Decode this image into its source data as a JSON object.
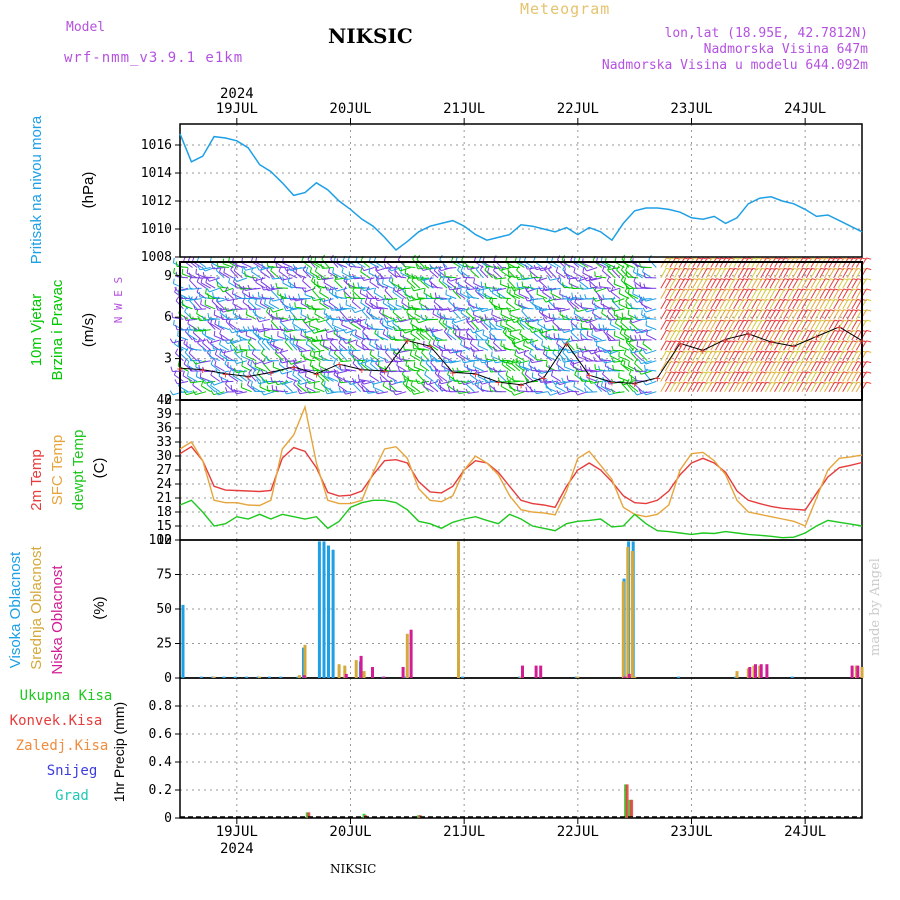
{
  "header": {
    "model_label": "Model",
    "model_name": "wrf-nmm_v3.9.1 e1km",
    "station": "NIKSIC",
    "product": "Meteogram",
    "lonlat": "lon,lat (18.95E, 42.7812N)",
    "elevation": "Nadmorska Visina 647m",
    "model_elevation": "Nadmorska Visina u modelu 644.092m",
    "footer_station": "NIKSIC",
    "credit": "made by Angel"
  },
  "colors": {
    "pressure": "#1ea0e6",
    "wind_label": "#00c800",
    "t2m": "#e63c3c",
    "tsfc": "#e6a53c",
    "dewpoint": "#1ec81e",
    "high_cloud": "#1ea0e6",
    "mid_cloud": "#d4aa3c",
    "low_cloud": "#d21e96",
    "precip_total": "#1ec81e",
    "precip_conv": "#e63c3c",
    "precip_frozen": "#f08c3c",
    "snow": "#3c3cdc",
    "hail": "#1ec8b4",
    "grid": "#999999"
  },
  "chart_data": [
    {
      "type": "line",
      "panel": "pressure",
      "ylabel": [
        "Pritisak na nivou mora",
        "(hPa)"
      ],
      "ylim": [
        1008,
        1017.5
      ],
      "yticks": [
        1008,
        1010,
        1012,
        1014,
        1016
      ],
      "x_unit": "days since 2024-07-19 00:00 UTC",
      "date_labels": {
        "year": "2024",
        "days": [
          "19JUL",
          "20JUL",
          "21JUL",
          "22JUL",
          "23JUL",
          "24JUL"
        ]
      },
      "series": [
        {
          "name": "Pritisak",
          "x": [
            -0.5,
            -0.4,
            -0.3,
            -0.2,
            -0.1,
            0.0,
            0.1,
            0.2,
            0.3,
            0.4,
            0.5,
            0.6,
            0.7,
            0.8,
            0.9,
            1.0,
            1.1,
            1.2,
            1.3,
            1.4,
            1.5,
            1.6,
            1.7,
            1.8,
            1.9,
            2.0,
            2.1,
            2.2,
            2.3,
            2.4,
            2.5,
            2.6,
            2.7,
            2.8,
            2.9,
            3.0,
            3.1,
            3.2,
            3.3,
            3.4,
            3.5,
            3.6,
            3.7,
            3.8,
            3.9,
            4.0,
            4.1,
            4.2,
            4.3,
            4.4,
            4.5,
            4.6,
            4.7,
            4.8,
            4.9,
            5.0,
            5.1,
            5.2,
            5.3,
            5.4,
            5.5
          ],
          "values": [
            1016.8,
            1014.8,
            1015.2,
            1016.6,
            1016.5,
            1016.3,
            1015.8,
            1014.6,
            1014.1,
            1013.3,
            1012.4,
            1012.6,
            1013.3,
            1012.8,
            1012.0,
            1011.4,
            1010.7,
            1010.2,
            1009.4,
            1008.5,
            1009.1,
            1009.8,
            1010.2,
            1010.4,
            1010.6,
            1010.2,
            1009.6,
            1009.2,
            1009.4,
            1009.6,
            1010.3,
            1010.2,
            1010.0,
            1009.8,
            1010.1,
            1009.6,
            1010.1,
            1009.8,
            1009.2,
            1010.4,
            1011.3,
            1011.5,
            1011.5,
            1011.4,
            1011.2,
            1010.8,
            1010.7,
            1010.9,
            1010.4,
            1010.8,
            1011.8,
            1012.2,
            1012.3,
            1012.0,
            1011.8,
            1011.4,
            1010.9,
            1011.0,
            1010.6,
            1010.2,
            1009.8
          ]
        }
      ]
    },
    {
      "type": "line",
      "panel": "wind",
      "ylabel": [
        "10m Vjetar",
        "Brzina i Pravac",
        "(m/s)"
      ],
      "compass": "N W E S",
      "ylim": [
        0,
        10
      ],
      "yticks": [
        0,
        3,
        6,
        9
      ],
      "series": [
        {
          "name": "Brzina",
          "x": [
            -0.5,
            -0.3,
            -0.1,
            0.1,
            0.3,
            0.5,
            0.7,
            0.9,
            1.1,
            1.3,
            1.5,
            1.7,
            1.9,
            2.1,
            2.3,
            2.5,
            2.7,
            2.9,
            3.1,
            3.3,
            3.5,
            3.7,
            3.9,
            4.1,
            4.3,
            4.5,
            4.7,
            4.9,
            5.1,
            5.3,
            5.5
          ],
          "values": [
            2.3,
            2.2,
            1.9,
            1.7,
            2.0,
            2.4,
            1.9,
            2.6,
            2.2,
            2.1,
            4.3,
            3.9,
            2.0,
            1.9,
            1.3,
            1.1,
            1.6,
            4.1,
            1.8,
            1.3,
            1.2,
            1.6,
            4.1,
            3.6,
            4.4,
            4.8,
            4.2,
            3.9,
            4.6,
            5.3,
            4.3
          ]
        }
      ]
    },
    {
      "type": "line",
      "panel": "temperature",
      "ylabel": [
        "2m Temp",
        "SFC Temp",
        "dewpt Temp",
        "(C)"
      ],
      "ylim": [
        12,
        42
      ],
      "yticks": [
        12,
        15,
        18,
        21,
        24,
        27,
        30,
        33,
        36,
        39,
        42
      ],
      "x": [
        -0.5,
        -0.4,
        -0.3,
        -0.2,
        -0.1,
        0.0,
        0.1,
        0.2,
        0.3,
        0.4,
        0.5,
        0.6,
        0.7,
        0.8,
        0.9,
        1.0,
        1.1,
        1.2,
        1.3,
        1.4,
        1.5,
        1.6,
        1.7,
        1.8,
        1.9,
        2.0,
        2.1,
        2.2,
        2.3,
        2.4,
        2.5,
        2.6,
        2.7,
        2.8,
        2.9,
        3.0,
        3.1,
        3.2,
        3.3,
        3.4,
        3.5,
        3.6,
        3.7,
        3.8,
        3.9,
        4.0,
        4.1,
        4.2,
        4.3,
        4.4,
        4.5,
        4.6,
        4.7,
        4.8,
        4.9,
        5.0,
        5.1,
        5.2,
        5.3,
        5.4,
        5.5
      ],
      "series": [
        {
          "name": "2m Temp",
          "values": [
            30.5,
            32.0,
            29.0,
            23.5,
            22.7,
            22.6,
            22.5,
            22.4,
            22.6,
            29.5,
            31.8,
            31.0,
            27.5,
            22.2,
            21.4,
            21.6,
            22.5,
            26.0,
            29.0,
            29.2,
            28.5,
            24.5,
            22.3,
            22.1,
            23.5,
            27.0,
            29.0,
            28.5,
            26.5,
            23.5,
            20.5,
            19.8,
            19.5,
            19.0,
            23.5,
            27.0,
            28.5,
            27.0,
            24.5,
            21.5,
            20.0,
            19.8,
            20.5,
            22.5,
            26.0,
            28.5,
            29.5,
            28.5,
            26.5,
            22.5,
            20.5,
            19.8,
            19.2,
            18.8,
            18.6,
            18.4,
            22.0,
            25.5,
            27.5,
            28.0,
            28.6
          ]
        },
        {
          "name": "SFC Temp",
          "values": [
            31.5,
            33.0,
            29.0,
            20.5,
            20.0,
            20.0,
            19.5,
            19.4,
            20.5,
            31.5,
            34.5,
            40.5,
            28.5,
            20.5,
            19.8,
            19.8,
            20.5,
            26.5,
            31.5,
            32.0,
            29.5,
            23.0,
            20.5,
            20.2,
            21.5,
            27.0,
            30.0,
            28.5,
            26.0,
            21.5,
            18.5,
            18.0,
            17.8,
            17.4,
            22.5,
            29.5,
            31.0,
            28.0,
            25.0,
            19.0,
            17.5,
            17.0,
            17.5,
            19.5,
            27.0,
            30.5,
            30.8,
            29.0,
            26.0,
            20.5,
            18.0,
            17.5,
            17.0,
            16.5,
            16.0,
            15.0,
            21.0,
            27.0,
            29.5,
            29.8,
            30.2
          ]
        },
        {
          "name": "dewpt Temp",
          "values": [
            19.5,
            20.5,
            18.0,
            15.0,
            15.5,
            17.0,
            16.5,
            17.5,
            16.5,
            17.5,
            17.0,
            16.5,
            17.0,
            14.5,
            16.0,
            19.0,
            20.0,
            20.5,
            20.5,
            20.0,
            18.5,
            16.0,
            15.5,
            14.5,
            15.8,
            16.5,
            17.0,
            16.2,
            15.5,
            17.5,
            16.5,
            15.0,
            14.5,
            14.0,
            15.5,
            16.0,
            16.2,
            16.5,
            14.8,
            15.0,
            17.5,
            15.5,
            14.0,
            13.8,
            13.5,
            13.2,
            13.5,
            13.4,
            13.8,
            13.5,
            13.2,
            13.0,
            12.8,
            12.5,
            12.6,
            13.5,
            15.0,
            16.2,
            15.8,
            15.4,
            15.0
          ]
        }
      ]
    },
    {
      "type": "bar",
      "panel": "cloud",
      "ylabel": [
        "Visoka Oblacnost",
        "Srednja Oblacnost",
        "Niska Oblacnost",
        "(%)"
      ],
      "ylim": [
        0,
        100
      ],
      "yticks": [
        0,
        25,
        50,
        75,
        100
      ],
      "series": [
        {
          "name": "Visoka Oblacnost",
          "x": [
            -0.46,
            -0.3,
            -0.2,
            -0.1,
            0.0,
            0.1,
            0.2,
            0.3,
            0.4,
            0.55,
            0.6,
            0.74,
            0.78,
            0.82,
            0.86,
            1.1,
            1.3,
            1.5,
            2.0,
            2.5,
            3.0,
            3.42,
            3.46,
            3.5,
            3.9,
            4.4,
            4.9
          ],
          "values": [
            53,
            1,
            1,
            1,
            1,
            1,
            1,
            1,
            1,
            1,
            22,
            99,
            99,
            96,
            93,
            12,
            1,
            1,
            1,
            1,
            1,
            72,
            99,
            99,
            1,
            1,
            1
          ]
        },
        {
          "name": "Srednja Oblacnost",
          "x": [
            -0.2,
            0.2,
            0.55,
            0.6,
            0.9,
            0.95,
            1.05,
            1.12,
            1.5,
            1.95,
            2.5,
            3.0,
            3.4,
            3.44,
            3.48,
            3.5,
            4.4,
            4.5,
            4.55,
            4.6,
            5.45,
            5.5
          ],
          "values": [
            1,
            1,
            2,
            24,
            10,
            9,
            13,
            5,
            32,
            99,
            1,
            1,
            70,
            95,
            92,
            1,
            5,
            7,
            9,
            9,
            9,
            8
          ]
        },
        {
          "name": "Niska Oblacnost",
          "x": [
            0.58,
            0.95,
            1.08,
            1.18,
            1.28,
            1.45,
            1.52,
            2.5,
            2.62,
            2.66,
            3.4,
            3.44,
            4.5,
            4.55,
            4.6,
            4.65,
            5.4,
            5.45
          ],
          "values": [
            2,
            3,
            16,
            8,
            1,
            8,
            35,
            9,
            9,
            9,
            1,
            3,
            8,
            10,
            10,
            10,
            9,
            9
          ]
        }
      ]
    },
    {
      "type": "bar",
      "panel": "precip",
      "ylabel": [
        "1hr Precip (mm)"
      ],
      "legend": [
        "Ukupna Kisa",
        "Konvek.Kisa",
        "Zaledj.Kisa",
        "Snijeg",
        "Grad"
      ],
      "ylim": [
        0,
        1
      ],
      "yticks": [
        0,
        0.2,
        0.4,
        0.6,
        0.8
      ],
      "series": [
        {
          "name": "Ukupna Kisa",
          "x": [
            0.62,
            1.12,
            1.6,
            3.42,
            3.46
          ],
          "values": [
            0.04,
            0.03,
            0.02,
            0.24,
            0.13
          ]
        },
        {
          "name": "Konvek.Kisa",
          "x": [
            0.62,
            1.12,
            1.6,
            3.42,
            3.46
          ],
          "values": [
            0.04,
            0.02,
            0.02,
            0.24,
            0.13
          ]
        }
      ]
    }
  ]
}
